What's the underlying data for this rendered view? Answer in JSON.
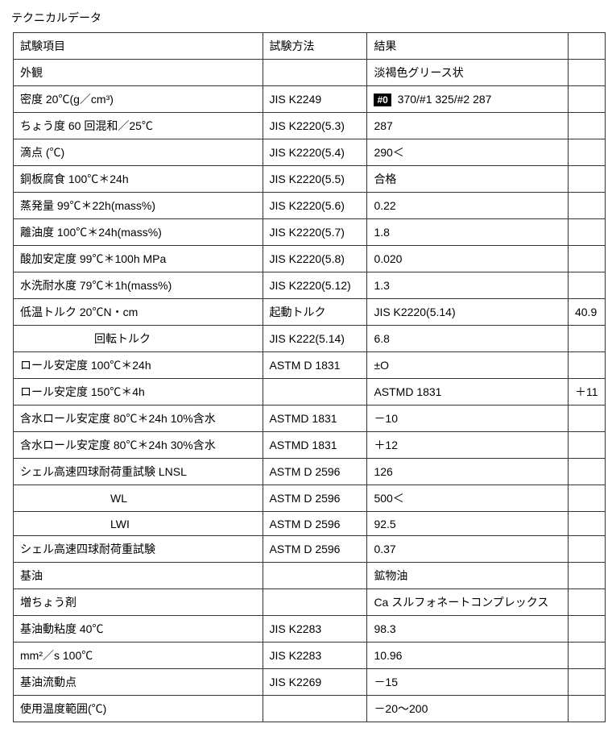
{
  "title": "テクニカルデータ",
  "headers": {
    "item": "試験項目",
    "method": "試験方法",
    "result": "結果",
    "extra": ""
  },
  "rows": [
    {
      "item": "外観",
      "method": "",
      "result": "淡褐色グリース状",
      "extra": ""
    },
    {
      "item": "密度 20℃(g／cm³)",
      "method": "JIS K2249",
      "result_prefix_badge": "#0",
      "result": " 370/#1 325/#2 287",
      "extra": ""
    },
    {
      "item": "ちょう度 60 回混和／25℃",
      "method": "JIS K2220(5.3)",
      "result": "287",
      "extra": ""
    },
    {
      "item": "滴点 (℃)",
      "method": "JIS K2220(5.4)",
      "result": "290＜",
      "extra": ""
    },
    {
      "item": "銅板腐食 100℃＊24h",
      "method": "JIS K2220(5.5)",
      "result": "合格",
      "extra": ""
    },
    {
      "item": "蒸発量 99℃＊22h(mass%)",
      "method": "JIS K2220(5.6)",
      "result": "0.22",
      "extra": ""
    },
    {
      "item": "離油度 100℃＊24h(mass%)",
      "method": "JIS K2220(5.7)",
      "result": "1.8",
      "extra": ""
    },
    {
      "item": "酸加安定度 99℃＊100h MPa",
      "method": "JIS K2220(5.8)",
      "result": "0.020",
      "extra": ""
    },
    {
      "item": "水洗耐水度 79℃＊1h(mass%)",
      "method": "JIS K2220(5.12)",
      "result": "1.3",
      "extra": ""
    },
    {
      "item": "低温トルク 20℃N・cm",
      "method": "起動トルク",
      "result": "JIS K2220(5.14)",
      "extra": "40.9"
    },
    {
      "item_indent": 1,
      "item": "回転トルク",
      "method": "JIS K222(5.14)",
      "result": "6.8",
      "extra": ""
    },
    {
      "item": "ロール安定度 100℃＊24h",
      "method": "ASTM D 1831",
      "result": "±O",
      "extra": ""
    },
    {
      "item": "ロール安定度 150℃＊4h",
      "method": "",
      "result": "ASTMD 1831",
      "extra": "＋11"
    },
    {
      "item": "含水ロール安定度 80℃＊24h 10%含水",
      "method": "ASTMD 1831",
      "result": "－10",
      "extra": ""
    },
    {
      "item": "含水ロール安定度 80℃＊24h 30%含水",
      "method": "ASTMD 1831",
      "result": "＋12",
      "extra": ""
    },
    {
      "item": "シェル高速四球耐荷重試験 LNSL",
      "method": "ASTM D 2596",
      "result": "126",
      "extra": ""
    },
    {
      "item_indent": 2,
      "item": "WL",
      "method": "ASTM D 2596",
      "result": "500＜",
      "extra": ""
    },
    {
      "item_indent": 2,
      "item": "LWI",
      "method": "ASTM D 2596",
      "result": "92.5",
      "extra": ""
    },
    {
      "item": "シェル高速四球耐荷重試験",
      "method": "ASTM D 2596",
      "result": "0.37",
      "extra": ""
    },
    {
      "item": "基油",
      "method": "",
      "result": "鉱物油",
      "extra": ""
    },
    {
      "item": "増ちょう剤",
      "method": "",
      "result": "Ca スルフォネートコンプレックス",
      "extra": ""
    },
    {
      "item": "基油動粘度 40℃",
      "method": "JIS K2283",
      "result": "98.3",
      "extra": ""
    },
    {
      "item": "mm²／s 100℃",
      "method": "JIS K2283",
      "result": "10.96",
      "extra": ""
    },
    {
      "item": "基油流動点",
      "method": "JIS K2269",
      "result": "－15",
      "extra": ""
    },
    {
      "item": "使用温度範囲(℃)",
      "method": "",
      "result": "－20～200",
      "extra": ""
    }
  ],
  "style": {
    "background_color": "#ffffff",
    "text_color": "#000000",
    "border_color": "#333333",
    "badge_bg": "#000000",
    "badge_fg": "#ffffff",
    "font_size": 14,
    "columns": {
      "item_width": 310,
      "method_width": 130,
      "result_width": 250,
      "extra_width": 46
    }
  }
}
